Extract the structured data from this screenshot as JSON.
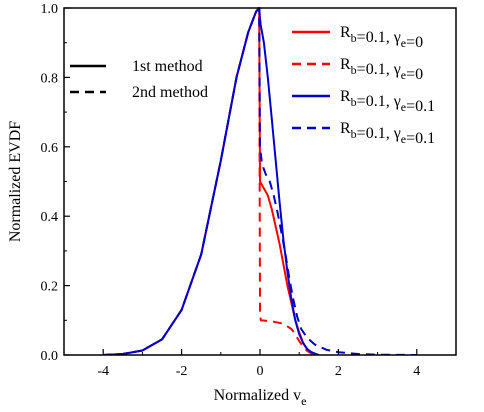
{
  "chart_data": {
    "type": "line",
    "title": "",
    "xlabel": "Normalized v_e",
    "ylabel": "Normalized EVDF",
    "xlim": [
      -5,
      5
    ],
    "ylim": [
      0,
      1
    ],
    "x_ticks": [
      -4,
      -2,
      0,
      2,
      4
    ],
    "y_ticks": [
      0.0,
      0.2,
      0.4,
      0.6,
      0.8,
      1.0
    ],
    "x_tick_labels": [
      "-4",
      "-2",
      "0",
      "2",
      "4"
    ],
    "y_tick_labels": [
      "0.0",
      "0.2",
      "0.4",
      "0.6",
      "0.8",
      "1.0"
    ],
    "grid": false,
    "legend_placement": "top-right",
    "style_legend": [
      {
        "label": "1st method",
        "dash": "solid"
      },
      {
        "label": "2nd method",
        "dash": "dashed"
      }
    ],
    "series": [
      {
        "name": "R_b=0.1, γ_e=0",
        "color": "#ff0000",
        "dash": "solid",
        "x": [
          -4.0,
          -3.5,
          -3.0,
          -2.5,
          -2.0,
          -1.5,
          -1.0,
          -0.6,
          -0.3,
          -0.1,
          -0.02,
          0.0,
          0.05,
          0.1,
          0.2,
          0.3,
          0.4,
          0.5,
          0.6,
          0.7,
          0.8,
          0.9,
          1.0,
          1.1,
          1.2,
          1.3,
          1.4
        ],
        "y": [
          0.0,
          0.003,
          0.013,
          0.045,
          0.13,
          0.29,
          0.56,
          0.8,
          0.93,
          0.99,
          1.0,
          0.5,
          0.49,
          0.48,
          0.46,
          0.42,
          0.37,
          0.32,
          0.26,
          0.2,
          0.15,
          0.1,
          0.065,
          0.035,
          0.018,
          0.007,
          0.0
        ]
      },
      {
        "name": "R_b=0.1, γ_e=0",
        "color": "#ff0000",
        "dash": "dashed",
        "x": [
          -4.0,
          -3.5,
          -3.0,
          -2.5,
          -2.0,
          -1.5,
          -1.0,
          -0.6,
          -0.3,
          -0.1,
          -0.02,
          0.0,
          0.02,
          0.3,
          0.6,
          0.8,
          0.9,
          1.0,
          1.1,
          1.2,
          1.3,
          1.4
        ],
        "y": [
          0.0,
          0.003,
          0.013,
          0.045,
          0.13,
          0.29,
          0.56,
          0.8,
          0.93,
          0.99,
          1.0,
          0.13,
          0.1,
          0.097,
          0.09,
          0.075,
          0.06,
          0.04,
          0.025,
          0.012,
          0.005,
          0.0
        ]
      },
      {
        "name": "R_b=0.1, γ_e=0.1",
        "color": "#0000cc",
        "dash": "solid",
        "x": [
          -4.0,
          -3.5,
          -3.0,
          -2.5,
          -2.0,
          -1.5,
          -1.0,
          -0.6,
          -0.3,
          -0.1,
          -0.02,
          0.0,
          0.02,
          0.1,
          0.2,
          0.3,
          0.4,
          0.5,
          0.6,
          0.7,
          0.8,
          0.9,
          1.0,
          1.1,
          1.2,
          1.3,
          1.4,
          1.5
        ],
        "y": [
          0.0,
          0.003,
          0.013,
          0.045,
          0.13,
          0.29,
          0.56,
          0.8,
          0.93,
          0.99,
          1.0,
          0.97,
          0.95,
          0.9,
          0.8,
          0.68,
          0.56,
          0.44,
          0.33,
          0.24,
          0.16,
          0.1,
          0.06,
          0.035,
          0.018,
          0.009,
          0.004,
          0.0
        ]
      },
      {
        "name": "R_b=0.1, γ_e=0.1",
        "color": "#0000cc",
        "dash": "dashed",
        "x": [
          -4.0,
          -3.5,
          -3.0,
          -2.5,
          -2.0,
          -1.5,
          -1.0,
          -0.6,
          -0.3,
          -0.1,
          -0.02,
          0.0,
          0.05,
          0.15,
          0.25,
          0.35,
          0.45,
          0.55,
          0.65,
          0.75,
          0.85,
          0.95,
          1.05,
          1.2,
          1.4,
          1.7,
          2.0,
          2.5,
          3.0,
          4.0
        ],
        "y": [
          0.0,
          0.003,
          0.013,
          0.045,
          0.13,
          0.29,
          0.56,
          0.8,
          0.93,
          0.99,
          1.0,
          0.6,
          0.55,
          0.52,
          0.5,
          0.46,
          0.41,
          0.35,
          0.29,
          0.22,
          0.16,
          0.11,
          0.075,
          0.05,
          0.03,
          0.015,
          0.008,
          0.003,
          0.001,
          0.0
        ]
      }
    ]
  }
}
